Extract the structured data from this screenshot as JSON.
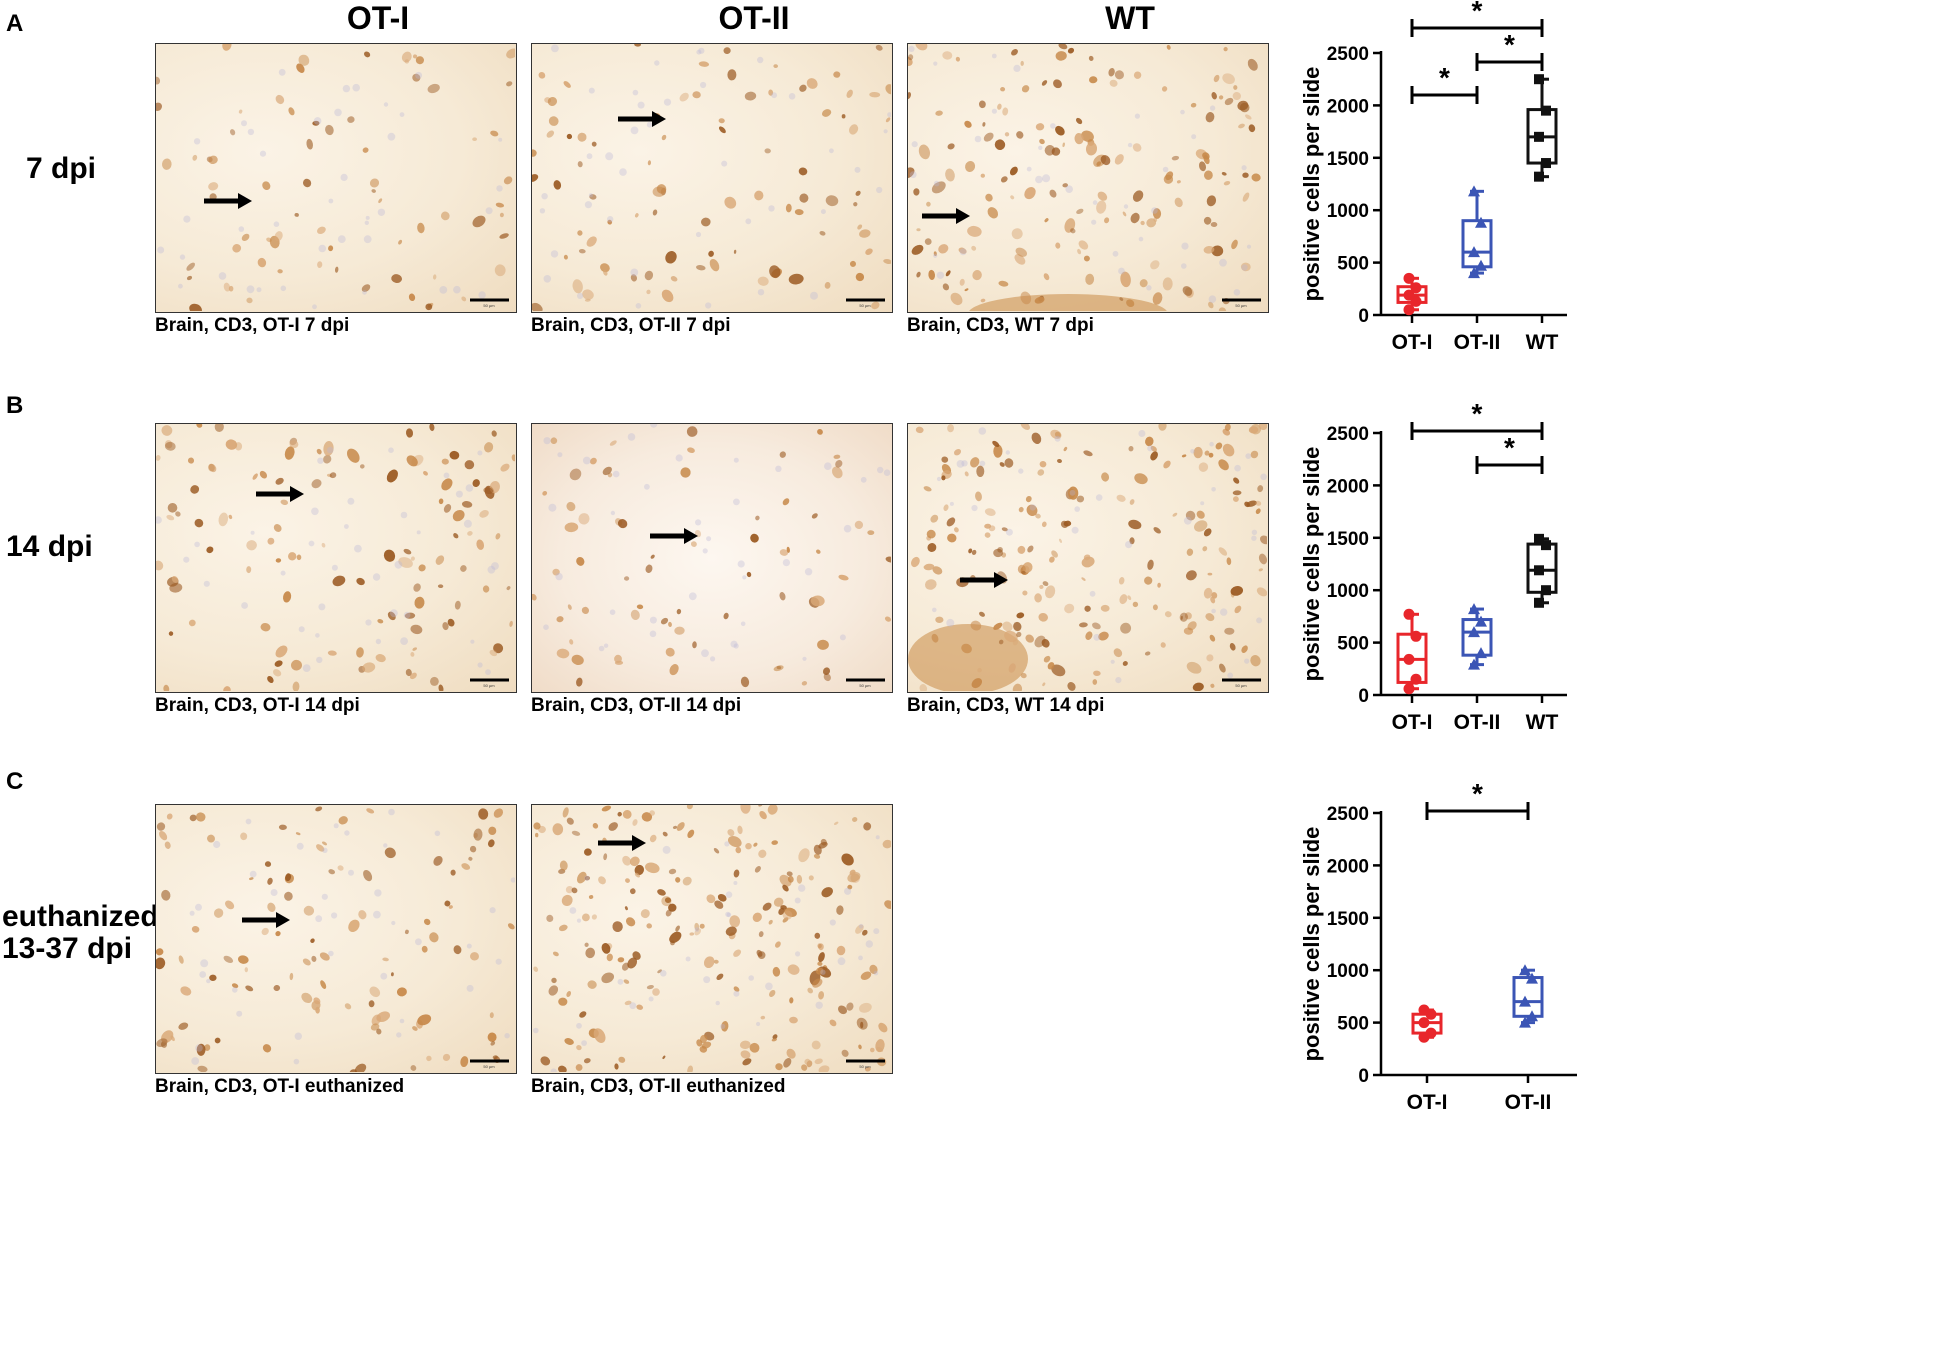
{
  "panels": [
    {
      "letter": "A",
      "row_label": [
        "7 dpi"
      ]
    },
    {
      "letter": "B",
      "row_label": [
        "14 dpi"
      ]
    },
    {
      "letter": "C",
      "row_label": [
        "euthanized",
        "13-37 dpi"
      ]
    }
  ],
  "column_headers": [
    "OT-I",
    "OT-II",
    "WT"
  ],
  "micrographs": [
    {
      "caption": "Brain, CD3, OT-I 7 dpi",
      "scale": "50 µm"
    },
    {
      "caption": "Brain, CD3, OT-II 7 dpi",
      "scale": "50 µm"
    },
    {
      "caption": "Brain, CD3, WT 7 dpi",
      "scale": "50 µm"
    },
    {
      "caption": "Brain, CD3, OT-I 14 dpi",
      "scale": "50 µm"
    },
    {
      "caption": "Brain, CD3, OT-II 14 dpi",
      "scale": "50 µm"
    },
    {
      "caption": "Brain, CD3, WT 14 dpi",
      "scale": "50 µm"
    },
    {
      "caption": "Brain, CD3, OT-I euthanized",
      "scale": "50 µm"
    },
    {
      "caption": "Brain, CD3, OT-II euthanized",
      "scale": "50 µm"
    }
  ],
  "colors": {
    "OT-I": "#e8262b",
    "OT-II": "#3b55b5",
    "WT": "#111111",
    "stain": "#b8742e"
  },
  "chart_data": [
    {
      "type": "box",
      "panel": "A",
      "ylabel": "positive cells per slide",
      "ylim": [
        0,
        2500
      ],
      "yticks": [
        0,
        500,
        1000,
        1500,
        2000,
        2500
      ],
      "categories": [
        "OT-I",
        "OT-II",
        "WT"
      ],
      "series": [
        {
          "category": "OT-I",
          "min": 50,
          "q1": 120,
          "median": 190,
          "q3": 270,
          "max": 350,
          "points": [
            50,
            130,
            190,
            260,
            350
          ]
        },
        {
          "category": "OT-II",
          "min": 400,
          "q1": 460,
          "median": 600,
          "q3": 900,
          "max": 1180,
          "points": [
            400,
            470,
            600,
            880,
            1180
          ]
        },
        {
          "category": "WT",
          "min": 1320,
          "q1": 1450,
          "median": 1700,
          "q3": 1960,
          "max": 2250,
          "points": [
            1320,
            1450,
            1700,
            1950,
            2250
          ]
        }
      ],
      "significance": [
        {
          "from": "OT-I",
          "to": "OT-II",
          "label": "*"
        },
        {
          "from": "OT-II",
          "to": "WT",
          "label": "*"
        },
        {
          "from": "OT-I",
          "to": "WT",
          "label": "*"
        }
      ]
    },
    {
      "type": "box",
      "panel": "B",
      "ylabel": "positive cells per slide",
      "ylim": [
        0,
        2500
      ],
      "yticks": [
        0,
        500,
        1000,
        1500,
        2000,
        2500
      ],
      "categories": [
        "OT-I",
        "OT-II",
        "WT"
      ],
      "series": [
        {
          "category": "OT-I",
          "min": 60,
          "q1": 120,
          "median": 340,
          "q3": 580,
          "max": 770,
          "points": [
            60,
            150,
            340,
            560,
            770
          ]
        },
        {
          "category": "OT-II",
          "min": 290,
          "q1": 380,
          "median": 600,
          "q3": 720,
          "max": 820,
          "points": [
            290,
            400,
            600,
            700,
            820
          ]
        },
        {
          "category": "WT",
          "min": 880,
          "q1": 980,
          "median": 1190,
          "q3": 1440,
          "max": 1490,
          "points": [
            880,
            1000,
            1190,
            1430,
            1490
          ]
        }
      ],
      "significance": [
        {
          "from": "OT-II",
          "to": "WT",
          "label": "*"
        },
        {
          "from": "OT-I",
          "to": "WT",
          "label": "*"
        }
      ]
    },
    {
      "type": "box",
      "panel": "C",
      "ylabel": "positive cells per slide",
      "ylim": [
        0,
        2500
      ],
      "yticks": [
        0,
        500,
        1000,
        1500,
        2000,
        2500
      ],
      "categories": [
        "OT-I",
        "OT-II"
      ],
      "series": [
        {
          "category": "OT-I",
          "min": 360,
          "q1": 400,
          "median": 500,
          "q3": 580,
          "max": 620,
          "points": [
            360,
            400,
            500,
            580,
            620
          ]
        },
        {
          "category": "OT-II",
          "min": 500,
          "q1": 560,
          "median": 700,
          "q3": 930,
          "max": 1000,
          "points": [
            500,
            560,
            700,
            920,
            1000
          ]
        }
      ],
      "significance": [
        {
          "from": "OT-I",
          "to": "OT-II",
          "label": "*"
        }
      ]
    }
  ]
}
